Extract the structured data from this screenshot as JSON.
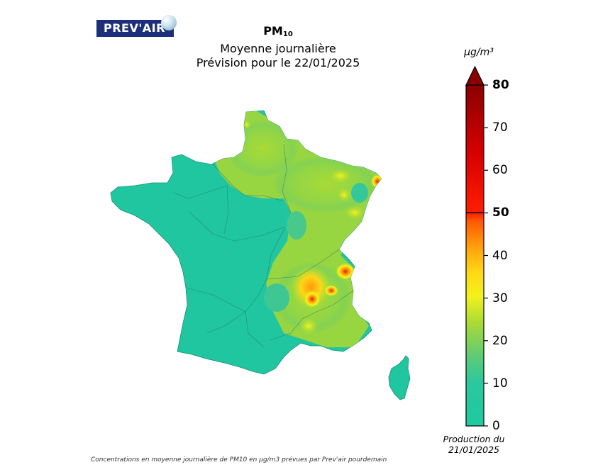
{
  "logo": {
    "text": "PREV'AIR"
  },
  "title": {
    "pollutant": "PM",
    "pollutant_sub": "10",
    "line2": "Moyenne journalière",
    "line3": "Prévision pour le 22/01/2025"
  },
  "colorbar": {
    "unit": "µg/m³",
    "ticks": [
      "0",
      "10",
      "20",
      "30",
      "40",
      "50",
      "60",
      "70",
      "80"
    ],
    "bold_ticks": [
      "50",
      "80"
    ],
    "range": [
      0,
      80
    ],
    "colors": [
      "#1ecaa0",
      "#21c4a6",
      "#58c97a",
      "#9fd83a",
      "#d9ec25",
      "#fbf51a",
      "#ffc413",
      "#ff9a0b",
      "#ff2a00",
      "#d10000",
      "#8e0000"
    ]
  },
  "production": {
    "line1": "Production du",
    "line2": "21/01/2025"
  },
  "footnote": "Concentrations en moyenne journalière de PM10 en µg/m3 prévues par Prev'air pourdemain",
  "map": {
    "region": "France",
    "background_level_color": "#1fc6a0",
    "hotspots": [
      {
        "name": "Strasbourg area",
        "level": 52
      },
      {
        "name": "Lyon area",
        "level": 42
      },
      {
        "name": "Grenoble area",
        "level": 38
      },
      {
        "name": "Marseille area",
        "level": 33
      }
    ]
  }
}
